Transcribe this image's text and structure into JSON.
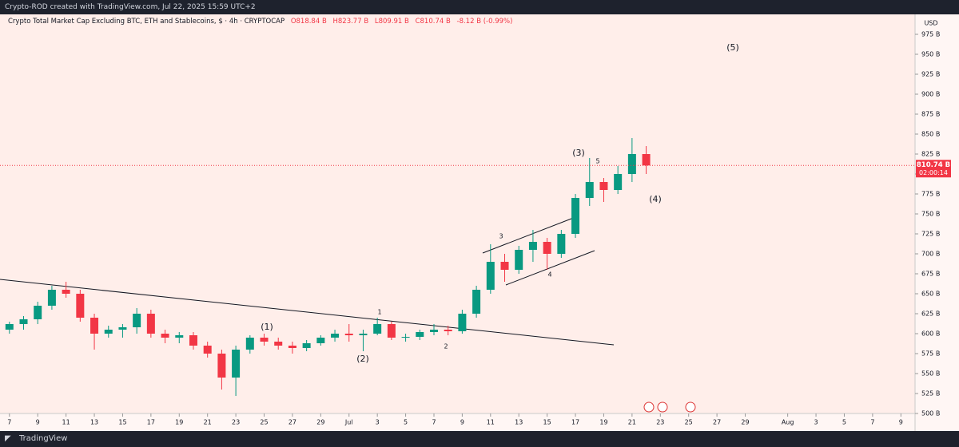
{
  "header": "Crypto-ROD created with TradingView.com, Jul 22, 2025 15:59 UTC+2",
  "footer": "TradingView",
  "chart_data": {
    "type": "candlestick",
    "title": "Crypto Total Market Cap Excluding BTC, ETH and Stablecoins, $ · 4h · CRYPTOCAP",
    "ohlc_labels": [
      "O818.84 B",
      "H823.77 B",
      "L809.91 B",
      "C810.74 B",
      "-8.12 B (-0.99%)"
    ],
    "currency": "USD",
    "price_label": "810.74 B",
    "countdown": "02:00:14",
    "up_color": "#089981",
    "down_color": "#f23645",
    "x": [
      "2025-06-07",
      "2025-06-08",
      "2025-06-09",
      "2025-06-10",
      "2025-06-11",
      "2025-06-12",
      "2025-06-13",
      "2025-06-14",
      "2025-06-15",
      "2025-06-16",
      "2025-06-17",
      "2025-06-18",
      "2025-06-19",
      "2025-06-20",
      "2025-06-21",
      "2025-06-22",
      "2025-06-23",
      "2025-06-24",
      "2025-06-25",
      "2025-06-26",
      "2025-06-27",
      "2025-06-28",
      "2025-06-29",
      "2025-06-30",
      "2025-07-01",
      "2025-07-02",
      "2025-07-03",
      "2025-07-04",
      "2025-07-05",
      "2025-07-06",
      "2025-07-07",
      "2025-07-08",
      "2025-07-09",
      "2025-07-10",
      "2025-07-11",
      "2025-07-12",
      "2025-07-13",
      "2025-07-14",
      "2025-07-15",
      "2025-07-16",
      "2025-07-17",
      "2025-07-18",
      "2025-07-19",
      "2025-07-20",
      "2025-07-21",
      "2025-07-22"
    ],
    "open": [
      605,
      612,
      618,
      635,
      655,
      650,
      620,
      600,
      605,
      608,
      625,
      600,
      595,
      598,
      585,
      575,
      545,
      580,
      595,
      590,
      585,
      582,
      588,
      595,
      600,
      598,
      600,
      612,
      595,
      596,
      602,
      605,
      603,
      625,
      655,
      690,
      680,
      705,
      715,
      700,
      725,
      770,
      790,
      780,
      800,
      825
    ],
    "high": [
      615,
      622,
      640,
      660,
      665,
      655,
      625,
      610,
      612,
      632,
      630,
      605,
      602,
      602,
      590,
      580,
      585,
      598,
      600,
      595,
      590,
      592,
      598,
      605,
      612,
      605,
      620,
      615,
      600,
      605,
      612,
      610,
      630,
      660,
      712,
      700,
      710,
      730,
      720,
      730,
      775,
      820,
      795,
      810,
      845,
      835
    ],
    "low": [
      600,
      605,
      612,
      630,
      645,
      615,
      580,
      595,
      595,
      600,
      595,
      588,
      588,
      580,
      570,
      530,
      522,
      575,
      585,
      580,
      575,
      578,
      585,
      590,
      590,
      578,
      598,
      592,
      590,
      592,
      598,
      598,
      600,
      620,
      650,
      665,
      675,
      690,
      680,
      695,
      720,
      760,
      765,
      775,
      790,
      800
    ],
    "close": [
      612,
      618,
      635,
      655,
      650,
      620,
      600,
      605,
      608,
      625,
      600,
      595,
      598,
      585,
      575,
      545,
      580,
      595,
      590,
      585,
      582,
      588,
      595,
      600,
      598,
      600,
      612,
      595,
      596,
      602,
      605,
      603,
      625,
      655,
      690,
      680,
      705,
      715,
      700,
      725,
      770,
      790,
      780,
      800,
      825,
      810.74
    ],
    "xlim": [
      "2025-06-06T08:00",
      "2025-08-10T00:00"
    ],
    "xticks": [
      {
        "value": "2025-06-07",
        "label": "7"
      },
      {
        "value": "2025-06-09",
        "label": "9"
      },
      {
        "value": "2025-06-11",
        "label": "11"
      },
      {
        "value": "2025-06-13",
        "label": "13"
      },
      {
        "value": "2025-06-15",
        "label": "15"
      },
      {
        "value": "2025-06-17",
        "label": "17"
      },
      {
        "value": "2025-06-19",
        "label": "19"
      },
      {
        "value": "2025-06-21",
        "label": "21"
      },
      {
        "value": "2025-06-23",
        "label": "23"
      },
      {
        "value": "2025-06-25",
        "label": "25"
      },
      {
        "value": "2025-06-27",
        "label": "27"
      },
      {
        "value": "2025-06-29",
        "label": "29"
      },
      {
        "value": "2025-07-01",
        "label": "Jul"
      },
      {
        "value": "2025-07-03",
        "label": "3"
      },
      {
        "value": "2025-07-05",
        "label": "5"
      },
      {
        "value": "2025-07-07",
        "label": "7"
      },
      {
        "value": "2025-07-09",
        "label": "9"
      },
      {
        "value": "2025-07-11",
        "label": "11"
      },
      {
        "value": "2025-07-13",
        "label": "13"
      },
      {
        "value": "2025-07-15",
        "label": "15"
      },
      {
        "value": "2025-07-17",
        "label": "17"
      },
      {
        "value": "2025-07-19",
        "label": "19"
      },
      {
        "value": "2025-07-21",
        "label": "21"
      },
      {
        "value": "2025-07-23",
        "label": "23"
      },
      {
        "value": "2025-07-25",
        "label": "25"
      },
      {
        "value": "2025-07-27",
        "label": "27"
      },
      {
        "value": "2025-07-29",
        "label": "29"
      },
      {
        "value": "2025-08-01",
        "label": "Aug"
      },
      {
        "value": "2025-08-03",
        "label": "3"
      },
      {
        "value": "2025-08-05",
        "label": "5"
      },
      {
        "value": "2025-08-07",
        "label": "7"
      },
      {
        "value": "2025-08-09",
        "label": "9"
      }
    ],
    "ylim": [
      500,
      1000
    ],
    "yticks": [
      {
        "value": 500,
        "label": "500 B"
      },
      {
        "value": 525,
        "label": "525 B"
      },
      {
        "value": 550,
        "label": "550 B"
      },
      {
        "value": 575,
        "label": "575 B"
      },
      {
        "value": 600,
        "label": "600 B"
      },
      {
        "value": 625,
        "label": "625 B"
      },
      {
        "value": 650,
        "label": "650 B"
      },
      {
        "value": 675,
        "label": "675 B"
      },
      {
        "value": 700,
        "label": "700 B"
      },
      {
        "value": 725,
        "label": "725 B"
      },
      {
        "value": 750,
        "label": "750 B"
      },
      {
        "value": 775,
        "label": "775 B"
      },
      {
        "value": 800,
        "label": "800 B"
      },
      {
        "value": 825,
        "label": "825 B"
      },
      {
        "value": 850,
        "label": "850 B"
      },
      {
        "value": 875,
        "label": "875 B"
      },
      {
        "value": 900,
        "label": "900 B"
      },
      {
        "value": 925,
        "label": "925 B"
      },
      {
        "value": 950,
        "label": "950 B"
      },
      {
        "value": 975,
        "label": "975 B"
      }
    ],
    "annotations": [
      "(5)",
      "(3)",
      "5",
      "(4)",
      "3",
      "4",
      "1",
      "(1)",
      "(2)",
      "2"
    ]
  }
}
